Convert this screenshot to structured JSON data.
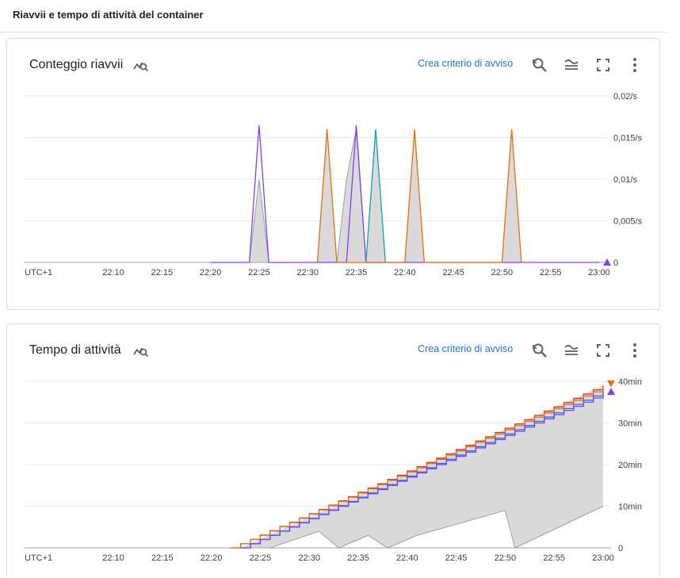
{
  "page": {
    "title": "Riavvii e tempo di attività del container"
  },
  "toolbar": {
    "alert_label": "Crea criterio di avviso",
    "icons": [
      "explore-icon",
      "zoom-reset-icon",
      "legend-icon",
      "fullscreen-icon",
      "more-vert-icon"
    ]
  },
  "colors": {
    "orange": "#e8710a",
    "red": "#d93025",
    "blue": "#1a73e8",
    "purple": "#7e3ff2",
    "teal": "#12a4af",
    "gray": "#9aa0a6",
    "fill": "#dadada",
    "link": "#1a73e8"
  },
  "charts": [
    {
      "title": "Conteggio riavvii",
      "timezone": "UTC+1",
      "chart_data": {
        "type": "line",
        "x_ticks": [
          "22:10",
          "22:15",
          "22:20",
          "22:25",
          "22:30",
          "22:35",
          "22:40",
          "22:45",
          "22:50",
          "22:55",
          "23:00"
        ],
        "y_ticks": [
          "0",
          "0,005/s",
          "0,01/s",
          "0,015/s",
          "0,02/s"
        ],
        "ylim": [
          0,
          0.02
        ],
        "series": [
          {
            "color": "purple",
            "points": [
              [
                "22:20",
                0
              ],
              [
                "22:24",
                0
              ],
              [
                "22:25",
                0.0165
              ],
              [
                "22:26",
                0
              ],
              [
                "22:34",
                0
              ],
              [
                "22:35",
                0.0165
              ],
              [
                "22:36",
                0
              ],
              [
                "23:00",
                0
              ]
            ]
          },
          {
            "color": "orange",
            "points": [
              [
                "22:31",
                0
              ],
              [
                "22:32",
                0.016
              ],
              [
                "22:33",
                0
              ],
              [
                "22:40",
                0
              ],
              [
                "22:41",
                0.016
              ],
              [
                "22:42",
                0
              ],
              [
                "22:50",
                0
              ],
              [
                "22:51",
                0.016
              ],
              [
                "22:52",
                0
              ]
            ]
          },
          {
            "color": "teal",
            "points": [
              [
                "22:36",
                0
              ],
              [
                "22:37",
                0.016
              ],
              [
                "22:38",
                0
              ]
            ]
          }
        ],
        "band": [
          [
            "22:24",
            0
          ],
          [
            "22:25",
            0.01
          ],
          [
            "22:26",
            0
          ],
          [
            "22:31",
            0
          ],
          [
            "22:32",
            0.016
          ],
          [
            "22:33",
            0
          ],
          [
            "22:34",
            0.01
          ],
          [
            "22:35",
            0.016
          ],
          [
            "22:36",
            0
          ],
          [
            "22:37",
            0.016
          ],
          [
            "22:38",
            0
          ],
          [
            "22:40",
            0
          ],
          [
            "22:41",
            0.016
          ],
          [
            "22:42",
            0
          ],
          [
            "22:50",
            0
          ],
          [
            "22:51",
            0.016
          ],
          [
            "22:52",
            0
          ]
        ],
        "grid": true
      }
    },
    {
      "title": "Tempo di attività",
      "timezone": "UTC+1",
      "chart_data": {
        "type": "line",
        "x_ticks": [
          "22:10",
          "22:15",
          "22:20",
          "22:25",
          "22:30",
          "22:35",
          "22:40",
          "22:45",
          "22:50",
          "22:55",
          "23:00"
        ],
        "y_ticks": [
          "0",
          "10min",
          "20min",
          "30min",
          "40min"
        ],
        "ylim": [
          0,
          40
        ],
        "series": [
          {
            "color": "red",
            "points": [
              [
                "22:22",
                0
              ],
              [
                "23:00",
                39
              ]
            ]
          },
          {
            "color": "orange",
            "points": [
              [
                "22:22",
                0
              ],
              [
                "23:00",
                38.5
              ]
            ]
          },
          {
            "color": "blue",
            "points": [
              [
                "22:23",
                0
              ],
              [
                "23:00",
                37.5
              ]
            ]
          },
          {
            "color": "purple",
            "points": [
              [
                "22:23",
                0
              ],
              [
                "23:00",
                37
              ]
            ]
          }
        ],
        "band_lower": [
          [
            "22:23",
            0
          ],
          [
            "22:26",
            0
          ],
          [
            "22:31",
            4
          ],
          [
            "22:33",
            0
          ],
          [
            "22:36",
            3
          ],
          [
            "22:38",
            0
          ],
          [
            "22:41",
            3
          ],
          [
            "22:50",
            9
          ],
          [
            "22:51",
            0
          ],
          [
            "23:00",
            10
          ]
        ],
        "grid": true
      }
    }
  ]
}
